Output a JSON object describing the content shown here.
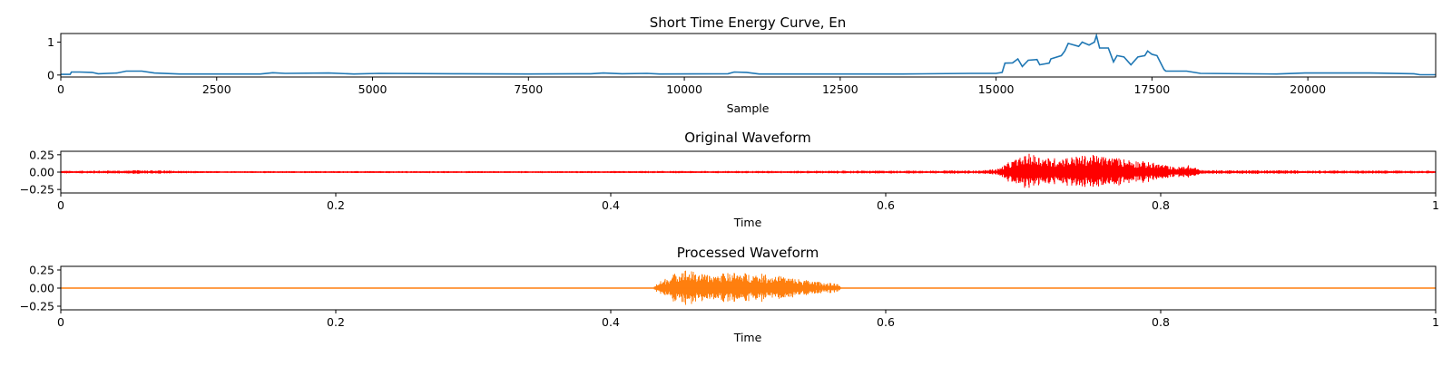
{
  "chart_data": [
    {
      "type": "line",
      "title": "Short Time Energy Curve, En",
      "xlabel": "Sample",
      "ylabel": "",
      "xlim": [
        0,
        22050
      ],
      "ylim": [
        -0.06,
        1.26
      ],
      "xticks": [
        0,
        2500,
        5000,
        7500,
        10000,
        12500,
        15000,
        17500,
        20000
      ],
      "xtick_labels": [
        "0",
        "2500",
        "5000",
        "7500",
        "10000",
        "12500",
        "15000",
        "17500",
        "20000"
      ],
      "yticks": [
        0,
        1
      ],
      "ytick_labels": [
        "0",
        "1"
      ],
      "color": "#1f77b4",
      "grid": false,
      "points": [
        [
          0,
          0.02
        ],
        [
          150,
          0.02
        ],
        [
          170,
          0.09
        ],
        [
          300,
          0.09
        ],
        [
          500,
          0.08
        ],
        [
          600,
          0.04
        ],
        [
          900,
          0.06
        ],
        [
          1050,
          0.12
        ],
        [
          1300,
          0.12
        ],
        [
          1500,
          0.06
        ],
        [
          1900,
          0.03
        ],
        [
          3200,
          0.03
        ],
        [
          3400,
          0.07
        ],
        [
          3600,
          0.05
        ],
        [
          4300,
          0.06
        ],
        [
          4700,
          0.03
        ],
        [
          5100,
          0.05
        ],
        [
          6300,
          0.04
        ],
        [
          7500,
          0.03
        ],
        [
          8500,
          0.04
        ],
        [
          8700,
          0.06
        ],
        [
          9000,
          0.04
        ],
        [
          9400,
          0.05
        ],
        [
          9600,
          0.03
        ],
        [
          10700,
          0.04
        ],
        [
          10800,
          0.09
        ],
        [
          11000,
          0.08
        ],
        [
          11200,
          0.03
        ],
        [
          13500,
          0.03
        ],
        [
          14600,
          0.05
        ],
        [
          15000,
          0.05
        ],
        [
          15097,
          0.08
        ],
        [
          15143,
          0.36
        ],
        [
          15264,
          0.37
        ],
        [
          15349,
          0.49
        ],
        [
          15421,
          0.26
        ],
        [
          15516,
          0.45
        ],
        [
          15656,
          0.47
        ],
        [
          15700,
          0.31
        ],
        [
          15851,
          0.36
        ],
        [
          15879,
          0.49
        ],
        [
          16046,
          0.59
        ],
        [
          16102,
          0.73
        ],
        [
          16157,
          0.96
        ],
        [
          16325,
          0.87
        ],
        [
          16381,
          1.0
        ],
        [
          16492,
          0.91
        ],
        [
          16577,
          1.0
        ],
        [
          16610,
          1.2
        ],
        [
          16660,
          0.82
        ],
        [
          16800,
          0.82
        ],
        [
          16883,
          0.4
        ],
        [
          16940,
          0.59
        ],
        [
          17051,
          0.55
        ],
        [
          17163,
          0.31
        ],
        [
          17275,
          0.55
        ],
        [
          17386,
          0.59
        ],
        [
          17431,
          0.73
        ],
        [
          17498,
          0.63
        ],
        [
          17581,
          0.59
        ],
        [
          17693,
          0.17
        ],
        [
          17721,
          0.12
        ],
        [
          18056,
          0.12
        ],
        [
          18279,
          0.05
        ],
        [
          19500,
          0.03
        ],
        [
          19950,
          0.06
        ],
        [
          21000,
          0.06
        ],
        [
          21700,
          0.04
        ],
        [
          21800,
          0.01
        ],
        [
          22050,
          0.01
        ]
      ]
    },
    {
      "type": "line",
      "title": "Original Waveform",
      "xlabel": "Time",
      "xlim": [
        0,
        1
      ],
      "ylim": [
        -0.3,
        0.3
      ],
      "xticks": [
        0,
        0.2,
        0.4,
        0.6,
        0.8,
        1
      ],
      "xtick_labels": [
        "0",
        "0.2",
        "0.4",
        "0.6",
        "0.8",
        "1"
      ],
      "yticks": [
        0.25,
        0,
        -0.25
      ],
      "ytick_labels": [
        "0.25",
        "0.00",
        "−0.25"
      ],
      "color": "#ff0000",
      "grid": false,
      "amplitude_envelope": [
        [
          0,
          0.02
        ],
        [
          0.05,
          0.025
        ],
        [
          0.06,
          0.03
        ],
        [
          0.1,
          0.015
        ],
        [
          0.4,
          0.015
        ],
        [
          0.55,
          0.02
        ],
        [
          0.67,
          0.025
        ],
        [
          0.682,
          0.05
        ],
        [
          0.69,
          0.15
        ],
        [
          0.705,
          0.27
        ],
        [
          0.72,
          0.2
        ],
        [
          0.75,
          0.25
        ],
        [
          0.78,
          0.18
        ],
        [
          0.8,
          0.12
        ],
        [
          0.81,
          0.07
        ],
        [
          0.82,
          0.1
        ],
        [
          0.83,
          0.03
        ],
        [
          1,
          0.02
        ]
      ]
    },
    {
      "type": "line",
      "title": "Processed Waveform",
      "xlabel": "Time",
      "xlim": [
        0,
        1
      ],
      "ylim": [
        -0.3,
        0.3
      ],
      "xticks": [
        0,
        0.2,
        0.4,
        0.6,
        0.8,
        1
      ],
      "xtick_labels": [
        "0",
        "0.2",
        "0.4",
        "0.6",
        "0.8",
        "1"
      ],
      "yticks": [
        0.25,
        0,
        -0.25
      ],
      "ytick_labels": [
        "0.25",
        "0.00",
        "−0.25"
      ],
      "color": "#ff7f0e",
      "grid": false,
      "amplitude_envelope": [
        [
          0,
          0
        ],
        [
          0.431,
          0
        ],
        [
          0.433,
          0.06
        ],
        [
          0.44,
          0.14
        ],
        [
          0.453,
          0.27
        ],
        [
          0.47,
          0.18
        ],
        [
          0.49,
          0.22
        ],
        [
          0.51,
          0.2
        ],
        [
          0.53,
          0.15
        ],
        [
          0.55,
          0.09
        ],
        [
          0.565,
          0.06
        ],
        [
          0.568,
          0
        ],
        [
          1,
          0
        ]
      ]
    }
  ]
}
